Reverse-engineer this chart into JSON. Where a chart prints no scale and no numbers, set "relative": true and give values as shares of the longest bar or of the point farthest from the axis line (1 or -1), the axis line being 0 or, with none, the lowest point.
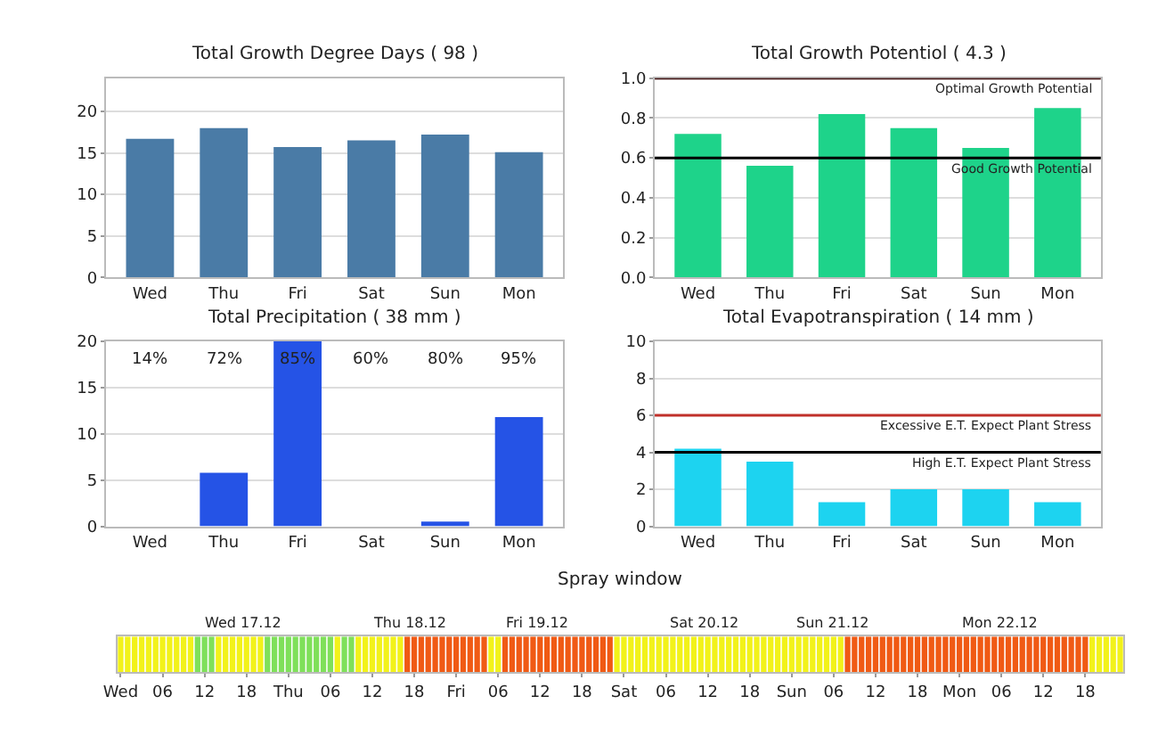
{
  "chart_data": [
    {
      "type": "bar",
      "title": "Total Growth Degree Days ( 98 )",
      "categories": [
        "Wed",
        "Thu",
        "Fri",
        "Sat",
        "Sun",
        "Mon"
      ],
      "values": [
        16.7,
        18,
        15.7,
        16.5,
        17.2,
        15.1
      ],
      "color": "#4a7ba6",
      "ylim": [
        0,
        24
      ],
      "yticks": [
        0,
        5,
        10,
        15,
        20
      ],
      "grid": "y"
    },
    {
      "type": "bar",
      "title": "Total Growth Potentiol ( 4.3 )",
      "categories": [
        "Wed",
        "Thu",
        "Fri",
        "Sat",
        "Sun",
        "Mon"
      ],
      "values": [
        0.72,
        0.56,
        0.82,
        0.75,
        0.65,
        0.85
      ],
      "color": "#1ed38a",
      "ylim": [
        0,
        1.0
      ],
      "yticks": [
        {
          "value": 0,
          "label": "0.0"
        },
        0.2,
        0.4,
        0.6,
        0.8,
        {
          "value": 1,
          "label": "1.0"
        }
      ],
      "grid": "y",
      "ref_lines": [
        {
          "axis": "y",
          "value": 1.0,
          "label": "Optimal Growth Potential",
          "color": "#3a0a0a"
        },
        {
          "axis": "y",
          "value": 0.6,
          "label": "Good Growth Potential",
          "color": "#000000"
        }
      ]
    },
    {
      "type": "bar",
      "title": "Total Precipitation ( 38 mm )",
      "categories": [
        "Wed",
        "Thu",
        "Fri",
        "Sat",
        "Sun",
        "Mon"
      ],
      "values": [
        0,
        5.8,
        20,
        0,
        0.5,
        11.8
      ],
      "color": "#2553e6",
      "ylim": [
        0,
        20
      ],
      "yticks": [
        0,
        5,
        10,
        15,
        20
      ],
      "grid": "y",
      "annotations": [
        "14%",
        "72%",
        "85%",
        "60%",
        "80%",
        "95%"
      ]
    },
    {
      "type": "bar",
      "title": "Total Evapotranspiration ( 14 mm )",
      "categories": [
        "Wed",
        "Thu",
        "Fri",
        "Sat",
        "Sun",
        "Mon"
      ],
      "values": [
        4.2,
        3.5,
        1.3,
        2.0,
        2.0,
        1.3
      ],
      "color": "#1dd3f0",
      "ylim": [
        0,
        10
      ],
      "yticks": [
        0,
        2,
        4,
        6,
        8,
        10
      ],
      "grid": "y",
      "ref_lines": [
        {
          "axis": "y",
          "value": 6,
          "label": "Excessive E.T. Expect Plant Stress",
          "color": "#c0302a"
        },
        {
          "axis": "y",
          "value": 4,
          "label": "High E.T. Expect Plant Stress",
          "color": "#000000"
        }
      ]
    },
    {
      "type": "bar",
      "title": "Spray window",
      "relative": true,
      "annotations": [
        "Wed 17.12",
        "Thu 18.12",
        "Fri 19.12",
        "Sat 20.12",
        "Sun 21.12",
        "Mon 22.12"
      ],
      "categories": [
        "Wed",
        null,
        null,
        null,
        null,
        null,
        "06",
        null,
        null,
        null,
        null,
        null,
        "12",
        null,
        null,
        null,
        null,
        null,
        "18",
        null,
        null,
        null,
        null,
        null,
        "Thu",
        null,
        null,
        null,
        null,
        null,
        "06",
        null,
        null,
        null,
        null,
        null,
        "12",
        null,
        null,
        null,
        null,
        null,
        "18",
        null,
        null,
        null,
        null,
        null,
        "Fri",
        null,
        null,
        null,
        null,
        null,
        "06",
        null,
        null,
        null,
        null,
        null,
        "12",
        null,
        null,
        null,
        null,
        null,
        "18",
        null,
        null,
        null,
        null,
        null,
        "Sat",
        null,
        null,
        null,
        null,
        null,
        "06",
        null,
        null,
        null,
        null,
        null,
        "12",
        null,
        null,
        null,
        null,
        null,
        "18",
        null,
        null,
        null,
        null,
        null,
        "Sun",
        null,
        null,
        null,
        null,
        null,
        "06",
        null,
        null,
        null,
        null,
        null,
        "12",
        null,
        null,
        null,
        null,
        null,
        "18",
        null,
        null,
        null,
        null,
        null,
        "Mon",
        null,
        null,
        null,
        null,
        null,
        "06",
        null,
        null,
        null,
        null,
        null,
        "12",
        null,
        null,
        null,
        null,
        null,
        "18",
        null,
        null,
        null,
        null,
        null
      ],
      "values": [
        1,
        1,
        1,
        1,
        1,
        1,
        1,
        1,
        1,
        1,
        1,
        1,
        1,
        1,
        1,
        1,
        1,
        1,
        1,
        1,
        1,
        1,
        1,
        1,
        1,
        1,
        1,
        1,
        1,
        1,
        1,
        1,
        1,
        1,
        1,
        1,
        1,
        1,
        1,
        1,
        1,
        1,
        1,
        1,
        1,
        1,
        1,
        1,
        1,
        1,
        1,
        1,
        1,
        1,
        1,
        1,
        1,
        1,
        1,
        1,
        1,
        1,
        1,
        1,
        1,
        1,
        1,
        1,
        1,
        1,
        1,
        1,
        1,
        1,
        1,
        1,
        1,
        1,
        1,
        1,
        1,
        1,
        1,
        1,
        1,
        1,
        1,
        1,
        1,
        1,
        1,
        1,
        1,
        1,
        1,
        1,
        1,
        1,
        1,
        1,
        1,
        1,
        1,
        1,
        1,
        1,
        1,
        1,
        1,
        1,
        1,
        1,
        1,
        1,
        1,
        1,
        1,
        1,
        1,
        1,
        1,
        1,
        1,
        1,
        1,
        1,
        1,
        1,
        1,
        1,
        1,
        1,
        1,
        1,
        1,
        1,
        1,
        1,
        1,
        1,
        1,
        1,
        1,
        1
      ],
      "colors": [
        "#f2f21a",
        "#f2f21a",
        "#f2f21a",
        "#f2f21a",
        "#f2f21a",
        "#f2f21a",
        "#f2f21a",
        "#f2f21a",
        "#f2f21a",
        "#f2f21a",
        "#f2f21a",
        "#7fe05a",
        "#7fe05a",
        "#7fe05a",
        "#f2f21a",
        "#f2f21a",
        "#f2f21a",
        "#f2f21a",
        "#f2f21a",
        "#f2f21a",
        "#f2f21a",
        "#7fe05a",
        "#7fe05a",
        "#7fe05a",
        "#7fe05a",
        "#7fe05a",
        "#7fe05a",
        "#7fe05a",
        "#7fe05a",
        "#7fe05a",
        "#7fe05a",
        "#f2f21a",
        "#7fe05a",
        "#7fe05a",
        "#f2f21a",
        "#f2f21a",
        "#f2f21a",
        "#f2f21a",
        "#f2f21a",
        "#f2f21a",
        "#f2f21a",
        "#f05a14",
        "#f05a14",
        "#f05a14",
        "#f05a14",
        "#f05a14",
        "#f05a14",
        "#f05a14",
        "#f05a14",
        "#f05a14",
        "#f05a14",
        "#f05a14",
        "#f05a14",
        "#f2f21a",
        "#f2f21a",
        "#f05a14",
        "#f05a14",
        "#f05a14",
        "#f05a14",
        "#f05a14",
        "#f05a14",
        "#f05a14",
        "#f05a14",
        "#f05a14",
        "#f05a14",
        "#f05a14",
        "#f05a14",
        "#f05a14",
        "#f05a14",
        "#f05a14",
        "#f05a14",
        "#f2f21a",
        "#f2f21a",
        "#f2f21a",
        "#f2f21a",
        "#f2f21a",
        "#f2f21a",
        "#f2f21a",
        "#f2f21a",
        "#f2f21a",
        "#f2f21a",
        "#f2f21a",
        "#f2f21a",
        "#f2f21a",
        "#f2f21a",
        "#f2f21a",
        "#f2f21a",
        "#f2f21a",
        "#f2f21a",
        "#f2f21a",
        "#f2f21a",
        "#f2f21a",
        "#f2f21a",
        "#f2f21a",
        "#f2f21a",
        "#f2f21a",
        "#f2f21a",
        "#f2f21a",
        "#f2f21a",
        "#f2f21a",
        "#f2f21a",
        "#f2f21a",
        "#f2f21a",
        "#f2f21a",
        "#f05a14",
        "#f05a14",
        "#f05a14",
        "#f05a14",
        "#f05a14",
        "#f05a14",
        "#f05a14",
        "#f05a14",
        "#f05a14",
        "#f05a14",
        "#f05a14",
        "#f05a14",
        "#f05a14",
        "#f05a14",
        "#f05a14",
        "#f05a14",
        "#f05a14",
        "#f05a14",
        "#f05a14",
        "#f05a14",
        "#f05a14",
        "#f05a14",
        "#f05a14",
        "#f05a14",
        "#f05a14",
        "#f05a14",
        "#f05a14",
        "#f05a14",
        "#f05a14",
        "#f05a14",
        "#f05a14",
        "#f05a14",
        "#f05a14",
        "#f05a14",
        "#f05a14",
        "#f2f21a",
        "#f2f21a",
        "#f2f21a",
        "#f2f21a",
        "#f2f21a"
      ]
    }
  ]
}
